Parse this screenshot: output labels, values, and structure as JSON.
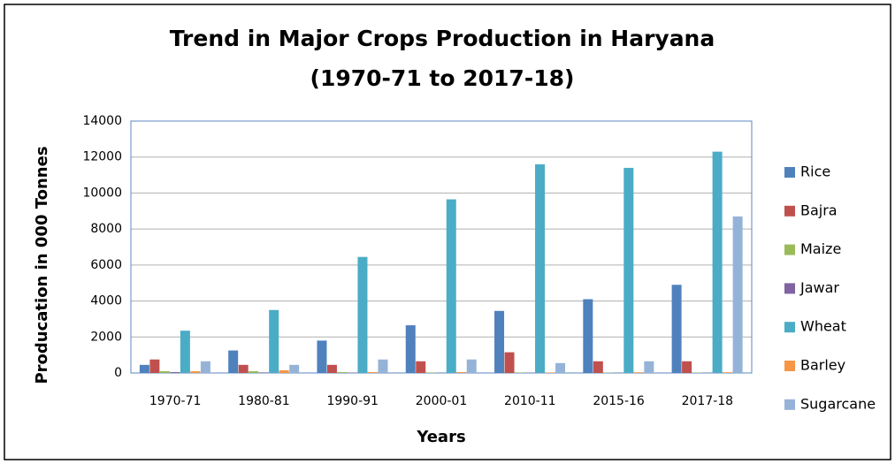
{
  "chart_data": {
    "type": "bar",
    "title": "Trend in Major Crops Production in Haryana",
    "subtitle": "(1970-71 to 2017-18)",
    "x_label": "Years",
    "y_label": "Producation in 000  Tonnes",
    "categories": [
      "1970-71",
      "1980-81",
      "1990-91",
      "2000-01",
      "2010-11",
      "2015-16",
      "2017-18"
    ],
    "series": [
      {
        "name": "Rice",
        "color": "#4f81bd",
        "values": [
          450,
          1250,
          1800,
          2650,
          3450,
          4100,
          4900
        ]
      },
      {
        "name": "Bajra",
        "color": "#c0504d",
        "values": [
          750,
          450,
          450,
          650,
          1150,
          650,
          650
        ]
      },
      {
        "name": "Maize",
        "color": "#9bbb59",
        "values": [
          100,
          100,
          50,
          30,
          30,
          20,
          20
        ]
      },
      {
        "name": "Jawar",
        "color": "#8064a2",
        "values": [
          50,
          30,
          20,
          10,
          10,
          5,
          5
        ]
      },
      {
        "name": "Wheat",
        "color": "#4bacc6",
        "values": [
          2350,
          3500,
          6450,
          9650,
          11600,
          11400,
          12300
        ]
      },
      {
        "name": "Barley",
        "color": "#f79646",
        "values": [
          100,
          150,
          50,
          50,
          30,
          40,
          40
        ]
      },
      {
        "name": "Sugarcane",
        "color": "#95b3d7",
        "values": [
          650,
          450,
          750,
          750,
          550,
          650,
          8700
        ]
      }
    ],
    "ylim": [
      0,
      14000
    ],
    "yticks": [
      0,
      2000,
      4000,
      6000,
      8000,
      10000,
      12000,
      14000
    ],
    "grid": true,
    "legend": "right"
  }
}
